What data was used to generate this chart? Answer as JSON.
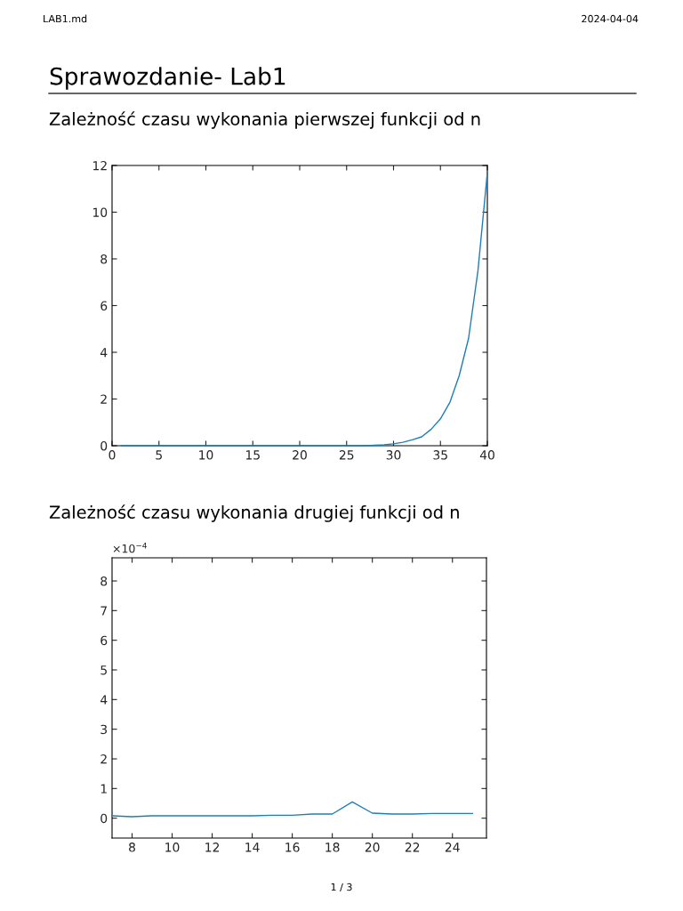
{
  "chart_data": [
    {
      "type": "line",
      "title": "Zależność czasu wykonania pierwszej funkcji od n",
      "annotations": [
        "LAB1.md",
        "2024-04-04",
        "Sprawozdanie- Lab1",
        "1 / 3"
      ],
      "x": [
        1,
        2,
        3,
        4,
        5,
        6,
        7,
        8,
        9,
        10,
        11,
        12,
        13,
        14,
        15,
        16,
        17,
        18,
        19,
        20,
        21,
        22,
        23,
        24,
        25,
        26,
        27,
        28,
        29,
        30,
        31,
        32,
        33,
        34,
        35,
        36,
        37,
        38,
        39,
        40
      ],
      "series": [
        {
          "color": "#1f7fb4",
          "values": [
            0,
            0,
            0,
            0,
            0,
            0,
            0,
            0,
            0,
            0,
            0,
            0,
            0,
            0,
            0,
            0,
            0,
            0,
            0,
            0,
            0,
            0,
            0,
            0,
            0,
            0,
            0,
            0.02,
            0.04,
            0.08,
            0.15,
            0.25,
            0.38,
            0.7,
            1.15,
            1.85,
            3.0,
            4.6,
            7.5,
            11.7
          ]
        }
      ],
      "xlim": [
        0,
        40
      ],
      "xticks": [
        0,
        5,
        10,
        15,
        20,
        25,
        30,
        35,
        40
      ],
      "ylim": [
        0,
        12
      ],
      "yticks": [
        0,
        2,
        4,
        6,
        8,
        10,
        12
      ],
      "grid": false,
      "marker": "none",
      "line_style": "solid"
    },
    {
      "type": "line",
      "title": "Zależność czasu wykonania drugiej funkcji od n",
      "annotations": [
        "×10$^{−4}$"
      ],
      "x": [
        7,
        8,
        9,
        10,
        11,
        12,
        13,
        14,
        15,
        16,
        17,
        18,
        19,
        20,
        21,
        22,
        23,
        24,
        25
      ],
      "series": [
        {
          "color": "#1f7fb4",
          "values": [
            0.08,
            0.05,
            0.08,
            0.08,
            0.08,
            0.08,
            0.08,
            0.08,
            0.1,
            0.1,
            0.14,
            0.14,
            0.55,
            0.17,
            0.14,
            0.14,
            0.16,
            0.16,
            0.16
          ]
        }
      ],
      "xlim": [
        7,
        25.7
      ],
      "xticks": [
        8,
        10,
        12,
        14,
        16,
        18,
        20,
        22,
        24
      ],
      "ylim": [
        -0.67,
        8.78
      ],
      "yticks": [
        0,
        1,
        2,
        3,
        4,
        5,
        6,
        7,
        8
      ],
      "grid": false,
      "marker": "none",
      "line_style": "solid"
    }
  ]
}
